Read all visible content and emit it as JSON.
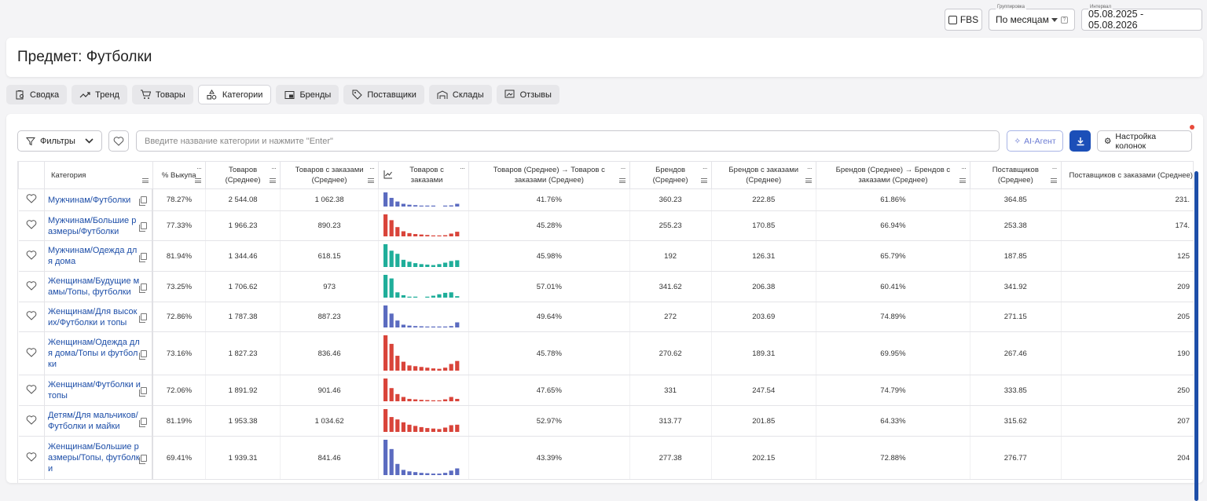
{
  "controls": {
    "fbs": "FBS",
    "grouping_label": "Группировка",
    "grouping_value": "По месяцам",
    "interval_label": "Интервал",
    "interval_value": "05.08.2025 - 05.08.2026"
  },
  "page_title": "Предмет: Футболки",
  "tabs": [
    {
      "label": "Сводка",
      "icon": "report-icon"
    },
    {
      "label": "Тренд",
      "icon": "trend-icon"
    },
    {
      "label": "Товары",
      "icon": "cart-icon"
    },
    {
      "label": "Категории",
      "icon": "shapes-icon",
      "active": true
    },
    {
      "label": "Бренды",
      "icon": "brand-icon"
    },
    {
      "label": "Поставщики",
      "icon": "tag-icon"
    },
    {
      "label": "Склады",
      "icon": "warehouse-icon"
    },
    {
      "label": "Отзывы",
      "icon": "review-icon"
    }
  ],
  "toolbar": {
    "filters": "Фильтры",
    "search_placeholder": "Введите название категории и нажмите \"Enter\"",
    "ai_agent": "AI-Агент",
    "columns": "Настройка колонок"
  },
  "colors": {
    "blue": "#5b6bc0",
    "red": "#d9443a",
    "teal": "#1fae9a",
    "link": "#1d4ea8"
  },
  "table": {
    "headers": [
      "Категория",
      "% Выкупа",
      "Товаров (Среднее)",
      "Товаров с заказами (Среднее)",
      "Товаров с заказами",
      "Товаров (Среднее) → Товаров с заказами (Среднее)",
      "Брендов (Среднее)",
      "Брендов с заказами (Среднее)",
      "Брендов (Среднее) → Брендов с заказами (Среднее)",
      "Поставщиков (Среднее)",
      "Поставщиков с заказами (Среднее)"
    ],
    "rows": [
      {
        "category": "Мужчинам/Футболки",
        "buyout": "78.27%",
        "goods": "2 544.08",
        "goods_orders": "1 062.38",
        "spark_color": "#5b6bc0",
        "spark": [
          62,
          38,
          22,
          12,
          8,
          6,
          4,
          4,
          3,
          0,
          4,
          5,
          12
        ],
        "conv": "41.76%",
        "brands": "360.23",
        "brands_orders": "222.85",
        "brands_conv": "61.86%",
        "suppliers": "364.85",
        "suppliers_orders": "231.",
        "h": 28
      },
      {
        "category": "Мужчинам/Большие размеры/Футболки",
        "buyout": "77.33%",
        "goods": "1 966.23",
        "goods_orders": "890.23",
        "spark_color": "#d9443a",
        "spark": [
          95,
          70,
          40,
          22,
          14,
          10,
          8,
          6,
          4,
          3,
          5,
          12,
          20
        ],
        "conv": "45.28%",
        "brands": "255.23",
        "brands_orders": "170.85",
        "brands_conv": "66.94%",
        "suppliers": "253.38",
        "suppliers_orders": "174.",
        "h": 38
      },
      {
        "category": "Мужчинам/Одежда для дома",
        "buyout": "81.94%",
        "goods": "1 344.46",
        "goods_orders": "618.15",
        "spark_color": "#1fae9a",
        "spark": [
          95,
          68,
          55,
          30,
          22,
          16,
          12,
          10,
          8,
          12,
          18,
          25,
          28
        ],
        "conv": "45.98%",
        "brands": "192",
        "brands_orders": "126.31",
        "brands_conv": "65.79%",
        "suppliers": "187.85",
        "suppliers_orders": "125",
        "h": 39
      },
      {
        "category": "Женщинам/Будущие мамы/Топы, футболки",
        "buyout": "73.25%",
        "goods": "1 706.62",
        "goods_orders": "973",
        "spark_color": "#1fae9a",
        "spark": [
          95,
          80,
          22,
          10,
          4,
          4,
          0,
          4,
          8,
          14,
          20,
          22,
          6
        ],
        "conv": "57.01%",
        "brands": "341.62",
        "brands_orders": "206.38",
        "brands_conv": "60.41%",
        "suppliers": "341.92",
        "suppliers_orders": "209",
        "h": 39
      },
      {
        "category": "Женщинам/Для высоких/Футболки и топы",
        "buyout": "72.86%",
        "goods": "1 787.38",
        "goods_orders": "887.23",
        "spark_color": "#5b6bc0",
        "spark": [
          95,
          60,
          30,
          12,
          8,
          6,
          5,
          4,
          4,
          3,
          3,
          6,
          22
        ],
        "conv": "49.64%",
        "brands": "272",
        "brands_orders": "203.69",
        "brands_conv": "74.89%",
        "suppliers": "271.15",
        "suppliers_orders": "205",
        "h": 38
      },
      {
        "category": "Женщинам/Одежда для дома/Топы и футболки",
        "buyout": "73.16%",
        "goods": "1 827.23",
        "goods_orders": "836.46",
        "spark_color": "#d9443a",
        "spark": [
          95,
          72,
          40,
          24,
          14,
          12,
          10,
          8,
          6,
          5,
          8,
          18,
          26
        ],
        "conv": "45.78%",
        "brands": "270.62",
        "brands_orders": "189.31",
        "brands_conv": "69.95%",
        "suppliers": "267.46",
        "suppliers_orders": "190",
        "h": 55
      },
      {
        "category": "Женщинам/Футболки и топы",
        "buyout": "72.06%",
        "goods": "1 891.92",
        "goods_orders": "901.46",
        "spark_color": "#d9443a",
        "spark": [
          95,
          55,
          30,
          18,
          10,
          8,
          6,
          5,
          4,
          4,
          8,
          18,
          10
        ],
        "conv": "47.65%",
        "brands": "331",
        "brands_orders": "247.54",
        "brands_conv": "74.79%",
        "suppliers": "333.85",
        "suppliers_orders": "250",
        "h": 39
      },
      {
        "category": "Детям/Для мальчиков/Футболки и майки",
        "buyout": "81.19%",
        "goods": "1 953.38",
        "goods_orders": "1 034.62",
        "spark_color": "#d9443a",
        "spark": [
          95,
          62,
          52,
          40,
          30,
          25,
          20,
          16,
          14,
          12,
          18,
          28,
          30
        ],
        "conv": "52.97%",
        "brands": "313.77",
        "brands_orders": "201.85",
        "brands_conv": "64.33%",
        "suppliers": "315.62",
        "suppliers_orders": "207",
        "h": 39
      },
      {
        "category": "Женщинам/Большие размеры/Топы, футболки",
        "buyout": "69.41%",
        "goods": "1 939.31",
        "goods_orders": "841.46",
        "spark_color": "#5b6bc0",
        "spark": [
          95,
          70,
          30,
          14,
          10,
          8,
          6,
          5,
          4,
          4,
          6,
          12,
          18
        ],
        "conv": "43.39%",
        "brands": "277.38",
        "brands_orders": "202.15",
        "brands_conv": "72.88%",
        "suppliers": "276.77",
        "suppliers_orders": "204",
        "h": 55
      }
    ]
  }
}
